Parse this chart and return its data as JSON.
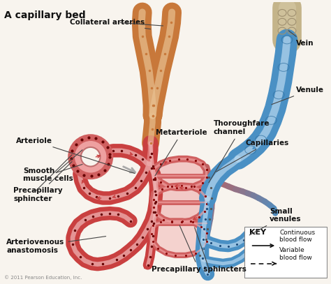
{
  "title": "A capillary bed",
  "background_color": "#f8f4ee",
  "labels": {
    "collateral_arteries": "Collateral arteries",
    "arteriole": "Arteriole",
    "smooth_muscle_cells": "Smooth\nmuscle cells",
    "precapillary_sphincter": "Precapillary\nsphincter",
    "arteriovenous_anastomosis": "Arteriovenous\nanastomosis",
    "metarteriole": "Metarteriole",
    "thoroughfare_channel": "Thoroughfare\nchannel",
    "capillaries": "Capillaries",
    "precapillary_sphincters": "Precapillary sphincters",
    "vein": "Vein",
    "venule": "Venule",
    "small_venules": "Small\nvenules",
    "key_title": "KEY",
    "key_continuous": "Continuous\nblood flow",
    "key_variable": "Variable\nblood flow",
    "copyright": "© 2011 Pearson Education, Inc."
  },
  "artery_color": "#c94040",
  "artery_light": "#e89090",
  "artery_fill": "#f0b8b8",
  "vein_color": "#4a90c4",
  "vein_light": "#90c4e0",
  "vein_fill": "#b8d8f0",
  "collateral_color": "#c8783a",
  "collateral_mid": "#d8986a",
  "collateral_light": "#e8c090",
  "vein_top_color": "#c4b48a",
  "vein_top_light": "#d8caa8"
}
